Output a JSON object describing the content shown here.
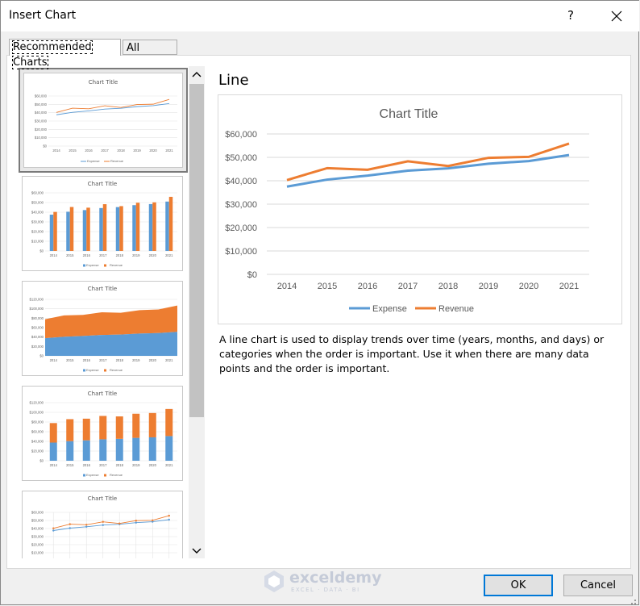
{
  "dialog": {
    "title": "Insert Chart",
    "help_label": "?",
    "ok_label": "OK",
    "cancel_label": "Cancel"
  },
  "tabs": [
    {
      "label": "Recommended Charts",
      "active": true
    },
    {
      "label": "All Charts",
      "active": false
    }
  ],
  "preview": {
    "heading": "Line",
    "description": "A line chart is used to display trends over time (years, months, and days) or categories when the order is important. Use it when there are many data points and the order is important."
  },
  "thumbnails": [
    {
      "type": "line",
      "title": "Chart Title",
      "selected": true
    },
    {
      "type": "clustered-column",
      "title": "Chart Title",
      "selected": false
    },
    {
      "type": "stacked-area",
      "title": "Chart Title",
      "selected": false
    },
    {
      "type": "stacked-column",
      "title": "Chart Title",
      "selected": false
    },
    {
      "type": "line-markers",
      "title": "Chart Title",
      "selected": false
    }
  ],
  "watermark": {
    "name": "exceldemy",
    "tagline": "EXCEL · DATA · BI"
  },
  "icons": {
    "close": "close-icon",
    "scroll_up": "chevron-up-icon",
    "scroll_down": "chevron-down-icon"
  },
  "colors": {
    "expense": "#5b9bd5",
    "revenue": "#ed7d31",
    "accent": "#0078d7"
  },
  "chart_data": {
    "type": "line",
    "title": "Chart Title",
    "categories": [
      "2014",
      "2015",
      "2016",
      "2017",
      "2018",
      "2019",
      "2020",
      "2021"
    ],
    "series": [
      {
        "name": "Expense",
        "values": [
          37500,
          40500,
          42200,
          44300,
          45300,
          47300,
          48400,
          51000
        ]
      },
      {
        "name": "Revenue",
        "values": [
          40300,
          45400,
          44700,
          48300,
          46300,
          49800,
          50200,
          55900
        ]
      }
    ],
    "yticks": [
      "$0",
      "$10,000",
      "$20,000",
      "$30,000",
      "$40,000",
      "$50,000",
      "$60,000"
    ],
    "ylim": [
      0,
      60000
    ],
    "grid": true,
    "legend": "bottom",
    "thumbnail_stacked_yticks": [
      "$0",
      "$20,000",
      "$40,000",
      "$60,000",
      "$80,000",
      "$100,000",
      "$120,000"
    ],
    "thumbnail_line_yticks": [
      "$0",
      "$10,000",
      "$20,000",
      "$30,000",
      "$40,000",
      "$50,000",
      "$60,000"
    ],
    "thumbnail_marker_yticks": [
      "$10,000",
      "$20,000",
      "$30,000",
      "$40,000",
      "$50,000",
      "$60,000"
    ]
  }
}
